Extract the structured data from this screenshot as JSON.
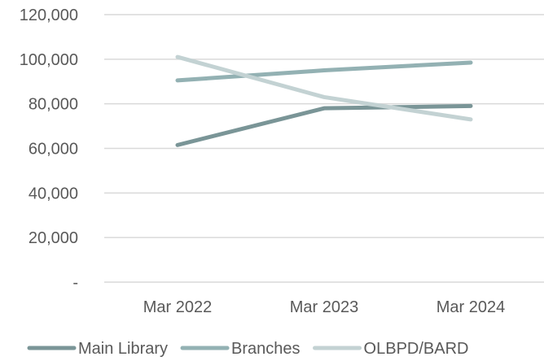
{
  "chart_data": {
    "type": "line",
    "title": "",
    "xlabel": "",
    "ylabel": "",
    "categories": [
      "Mar 2022",
      "Mar 2023",
      "Mar 2024"
    ],
    "y_tick_labels": [
      "-",
      "20,000",
      "40,000",
      "60,000",
      "80,000",
      "100,000",
      "120,000"
    ],
    "y_ticks": [
      0,
      20000,
      40000,
      60000,
      80000,
      100000,
      120000
    ],
    "ylim": [
      0,
      120000
    ],
    "grid": true,
    "legend_position": "bottom",
    "series": [
      {
        "name": "Main Library",
        "values": [
          61500,
          78000,
          79000
        ],
        "color": "#7a9597"
      },
      {
        "name": "Branches",
        "values": [
          90500,
          95000,
          98500
        ],
        "color": "#93b1b3"
      },
      {
        "name": "OLBPD/BARD",
        "values": [
          101000,
          83000,
          73000
        ],
        "color": "#c3d2d3"
      }
    ]
  }
}
